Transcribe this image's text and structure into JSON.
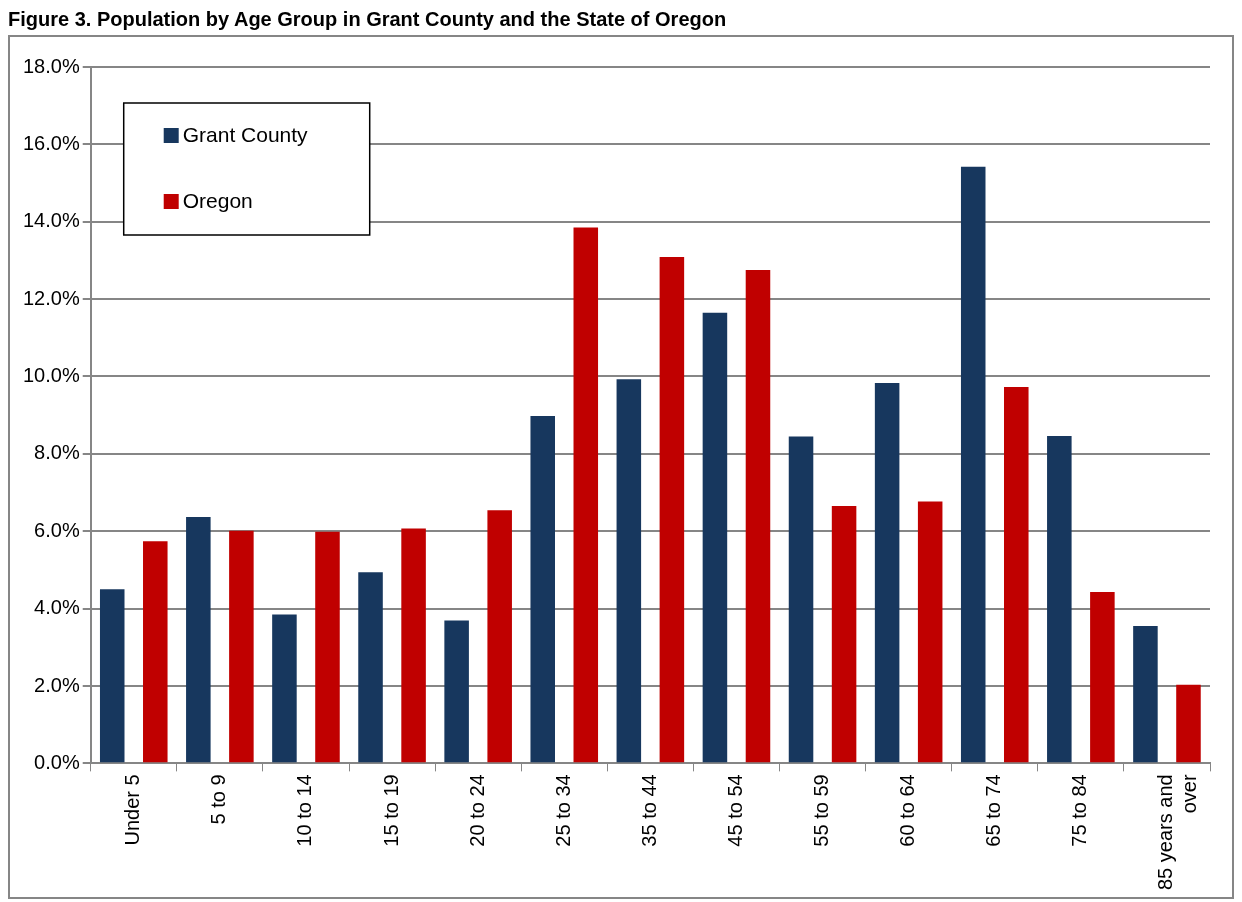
{
  "chart_data": {
    "type": "bar",
    "title": "Figure 3.     Population by Age Group in Grant County and the State of Oregon",
    "categories": [
      "Under 5",
      "5 to 9",
      "10 to 14",
      "15 to 19",
      "20 to 24",
      "25 to 34",
      "35 to 44",
      "45 to 54",
      "55 to 59",
      "60 to 64",
      "65 to 74",
      "75 to 84",
      "85 years and over"
    ],
    "series": [
      {
        "name": "Grant County",
        "color": "#17375e",
        "values": [
          4.5,
          6.37,
          3.85,
          4.94,
          3.69,
          8.98,
          9.93,
          11.65,
          8.45,
          9.83,
          15.42,
          8.46,
          3.55
        ]
      },
      {
        "name": "Oregon",
        "color": "#c00000",
        "values": [
          5.74,
          6.01,
          5.99,
          6.07,
          6.54,
          13.85,
          13.09,
          12.75,
          6.65,
          6.77,
          9.73,
          4.43,
          2.03
        ]
      }
    ],
    "ylim": [
      0,
      18
    ],
    "yticks": [
      {
        "value": 0,
        "label": "0.0%"
      },
      {
        "value": 2,
        "label": "2.0%"
      },
      {
        "value": 4,
        "label": "4.0%"
      },
      {
        "value": 6,
        "label": "6.0%"
      },
      {
        "value": 8,
        "label": "8.0%"
      },
      {
        "value": 10,
        "label": "10.0%"
      },
      {
        "value": 12,
        "label": "12.0%"
      },
      {
        "value": 14,
        "label": "14.0%"
      },
      {
        "value": 16,
        "label": "16.0%"
      },
      {
        "value": 18,
        "label": "18.0%"
      }
    ],
    "grid": "y",
    "legend": "top left"
  }
}
